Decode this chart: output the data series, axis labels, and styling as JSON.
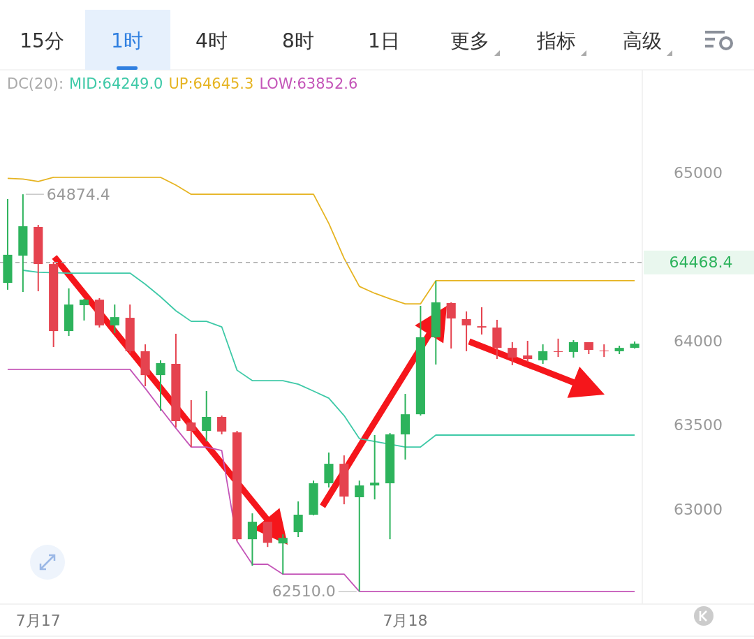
{
  "chart_data": {
    "type": "candlestick",
    "categories": [
      null,
      null,
      "7月17",
      null,
      null,
      null,
      null,
      null,
      null,
      null,
      null,
      null,
      null,
      null,
      null,
      null,
      null,
      null,
      null,
      null,
      null,
      null,
      null,
      null,
      null,
      null,
      "7月18",
      null,
      null,
      null,
      null,
      null,
      null,
      null,
      null,
      null,
      null,
      null,
      null,
      null,
      null,
      null
    ],
    "ohlc": [
      [
        64347,
        64846,
        64306,
        64514
      ],
      [
        64509,
        64874.4,
        64293,
        64684
      ],
      [
        64680,
        64692,
        64297,
        64459
      ],
      [
        64459,
        64472,
        63965,
        64060
      ],
      [
        64060,
        64314,
        64031,
        64218
      ],
      [
        64214,
        64252,
        64123,
        64247
      ],
      [
        64247,
        64256,
        64081,
        64094
      ],
      [
        64094,
        64218,
        64048,
        64143
      ],
      [
        64139,
        64218,
        63927,
        63940
      ],
      [
        63940,
        63981,
        63732,
        63798
      ],
      [
        63798,
        63886,
        63586,
        63869
      ],
      [
        63865,
        64044,
        63486,
        63524
      ],
      [
        63516,
        63649,
        63370,
        63466
      ],
      [
        63466,
        63703,
        63403,
        63549
      ],
      [
        63549,
        63557,
        63445,
        63462
      ],
      [
        63457,
        63466,
        62813,
        62821
      ],
      [
        62821,
        62975,
        62663,
        62925
      ],
      [
        62925,
        62925,
        62775,
        62800
      ],
      [
        62796,
        62850,
        62613,
        62829
      ],
      [
        62863,
        63046,
        62834,
        62967
      ],
      [
        62967,
        63170,
        62963,
        63154
      ],
      [
        63154,
        63337,
        63129,
        63270
      ],
      [
        63270,
        63320,
        63029,
        63075
      ],
      [
        63071,
        63170,
        62510,
        63141
      ],
      [
        63141,
        63441,
        63058,
        63158
      ],
      [
        63154,
        63453,
        62821,
        63445
      ],
      [
        63445,
        63686,
        63295,
        63565
      ],
      [
        63565,
        64210,
        63557,
        64023
      ],
      [
        64023,
        64360,
        63861,
        64231
      ],
      [
        64227,
        64231,
        63956,
        64135
      ],
      [
        64131,
        64177,
        63940,
        64094
      ],
      [
        64089,
        64202,
        64040,
        64081
      ],
      [
        64081,
        64127,
        63894,
        63960
      ],
      [
        63960,
        63994,
        63857,
        63902
      ],
      [
        63915,
        64002,
        63877,
        63894
      ],
      [
        63886,
        63981,
        63865,
        63940
      ],
      [
        63940,
        64015,
        63906,
        63936
      ],
      [
        63936,
        64006,
        63902,
        63994
      ],
      [
        63994,
        63994,
        63923,
        63948
      ],
      [
        63944,
        63981,
        63906,
        63940
      ],
      [
        63940,
        63973,
        63923,
        63960
      ],
      [
        63960,
        63998,
        63956,
        63985
      ]
    ],
    "colors": [
      "#2db35c",
      "#2db35c",
      "#e5434f",
      "#e5434f",
      "#2db35c",
      "#2db35c",
      "#e5434f",
      "#2db35c",
      "#e5434f",
      "#e5434f",
      "#2db35c",
      "#e5434f",
      "#e5434f",
      "#2db35c",
      "#e5434f",
      "#e5434f",
      "#2db35c",
      "#e5434f",
      "#2db35c",
      "#2db35c",
      "#2db35c",
      "#2db35c",
      "#e5434f",
      "#2db35c",
      "#2db35c",
      "#2db35c",
      "#2db35c",
      "#2db35c",
      "#2db35c",
      "#e5434f",
      "#e5434f",
      "#e5434f",
      "#e5434f",
      "#e5434f",
      "#e5434f",
      "#2db35c",
      "#e5434f",
      "#2db35c",
      "#e5434f",
      "#e5434f",
      "#2db35c",
      "#2db35c"
    ],
    "series": [
      {
        "name": "MID:64249.0",
        "color": "#3ec9a7",
        "type": "line",
        "values": [
          null,
          64422,
          64410,
          null,
          64405,
          64405,
          64405,
          64405,
          64405,
          64339,
          64264,
          64181,
          64118,
          64118,
          64085,
          63827,
          63765,
          63765,
          63765,
          63744,
          63703,
          63661,
          63557,
          63420,
          63403,
          null,
          63370,
          63370,
          63441,
          63441,
          63441,
          63441,
          63441,
          63441,
          63441,
          63441,
          63441,
          63441,
          63441,
          63441,
          63441,
          63441
        ]
      },
      {
        "name": "UP:64645.3",
        "color": "#e6b422",
        "type": "line",
        "values": [
          64969,
          64965,
          64950,
          64975,
          64975,
          64975,
          64975,
          64975,
          64975,
          64975,
          64975,
          64929,
          64874.4,
          64874.4,
          64874.4,
          64874.4,
          64874.4,
          64874.4,
          64874.4,
          64874.4,
          64874.4,
          64701,
          64493,
          64326,
          64285,
          64252,
          64222,
          64222,
          64360,
          64360,
          64360,
          64360,
          64360,
          64360,
          64360,
          64360,
          64360,
          64360,
          64360,
          64360,
          64360,
          64360
        ]
      },
      {
        "name": "LOW:63852.6",
        "color": "#c455b8",
        "type": "line",
        "values": [
          63832,
          63832,
          63832,
          63832,
          63832,
          63832,
          63832,
          63832,
          63832,
          63719,
          63599,
          63482,
          63370,
          63370,
          63349,
          62809,
          62672,
          62672,
          62613,
          62613,
          62613,
          62613,
          62613,
          62510,
          62510,
          62510,
          62510,
          62510,
          62510,
          62510,
          62510,
          62510,
          62510,
          62510,
          62510,
          62510,
          62510,
          62510,
          62510,
          62510,
          62510,
          62510
        ]
      }
    ],
    "legend_title": "DC(20):",
    "legend": "top",
    "ylim": [
      62435,
      65615
    ],
    "yticks": [
      63000,
      63500,
      64000,
      65000
    ],
    "ref_lines": [
      {
        "axis": "y",
        "value": 64468.4,
        "label": "64468.4",
        "color": "#aaaaaa",
        "line_style": "dashed"
      }
    ],
    "annotations": [
      "15分",
      "1时",
      "4时",
      "8时",
      "1日",
      "更多",
      "指标",
      "高级",
      "64874.4",
      "62510.0"
    ]
  }
}
